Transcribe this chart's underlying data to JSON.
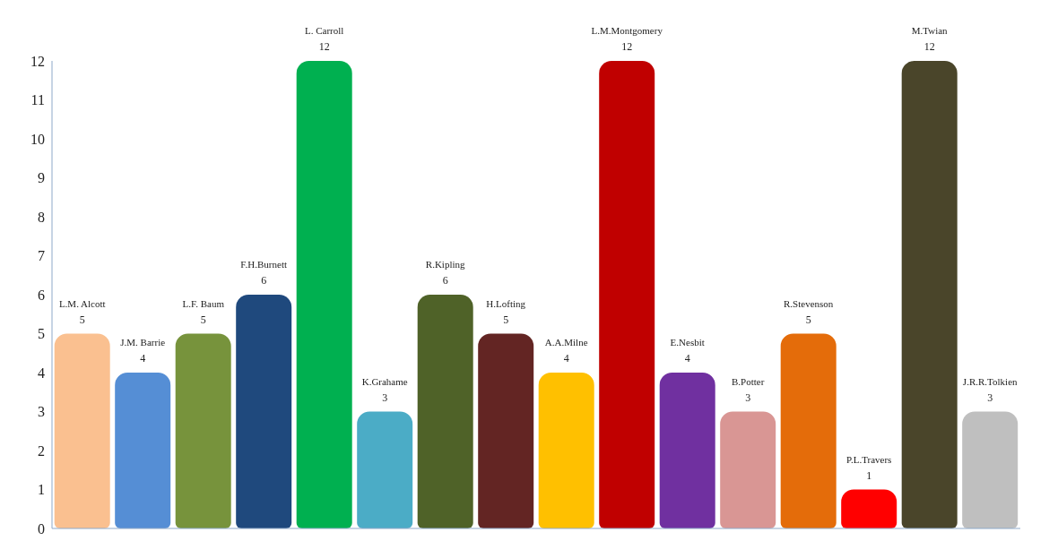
{
  "chart_data": {
    "type": "bar",
    "categories": [
      "L.M. Alcott",
      "J.M. Barrie",
      "L.F. Baum",
      "F.H.Burnett",
      "L. Carroll",
      "K.Grahame",
      "R.Kipling",
      "H.Lofting",
      "A.A.Milne",
      "L.M.Montgomery",
      "E.Nesbit",
      "B.Potter",
      "R.Stevenson",
      "P.L.Travers",
      "M.Twian",
      "J.R.R.Tolkien"
    ],
    "values": [
      5,
      4,
      5,
      6,
      12,
      3,
      6,
      5,
      4,
      12,
      4,
      3,
      5,
      1,
      12,
      3
    ],
    "colors": [
      "#fac090",
      "#558ed5",
      "#77933c",
      "#1f497d",
      "#00b050",
      "#4bacc6",
      "#4f6228",
      "#632523",
      "#ffc000",
      "#c00000",
      "#7030a0",
      "#d99694",
      "#e46c0a",
      "#ff0000",
      "#4a452a",
      "#bfbfbf"
    ],
    "ylim": [
      0,
      12
    ],
    "yticks": [
      0,
      1,
      2,
      3,
      4,
      5,
      6,
      7,
      8,
      9,
      10,
      11,
      12
    ],
    "grid": false,
    "tick_labels": "y",
    "legend": false,
    "data_labels": true
  }
}
